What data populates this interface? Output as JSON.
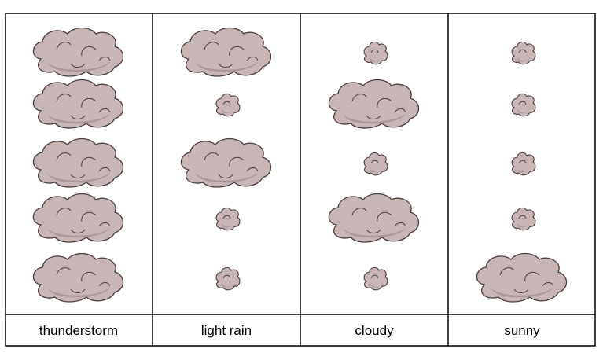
{
  "columns": [
    {
      "label": "thunderstorm",
      "clouds": [
        "large",
        "large",
        "large",
        "large",
        "large"
      ]
    },
    {
      "label": "light rain",
      "clouds": [
        "large",
        "small",
        "large",
        "small",
        "small"
      ]
    },
    {
      "label": "cloudy",
      "clouds": [
        "small",
        "large",
        "small",
        "large",
        "small"
      ]
    },
    {
      "label": "sunny",
      "clouds": [
        "small",
        "small",
        "small",
        "small",
        "large"
      ]
    }
  ],
  "colors": {
    "cloud_fill": "#c8b6b6",
    "cloud_shade": "#a08c8c",
    "cloud_outline": "#4a3e3e",
    "grid_line": "#000000"
  },
  "icons": {
    "large": "large-cloud-icon",
    "small": "small-cloud-icon"
  }
}
